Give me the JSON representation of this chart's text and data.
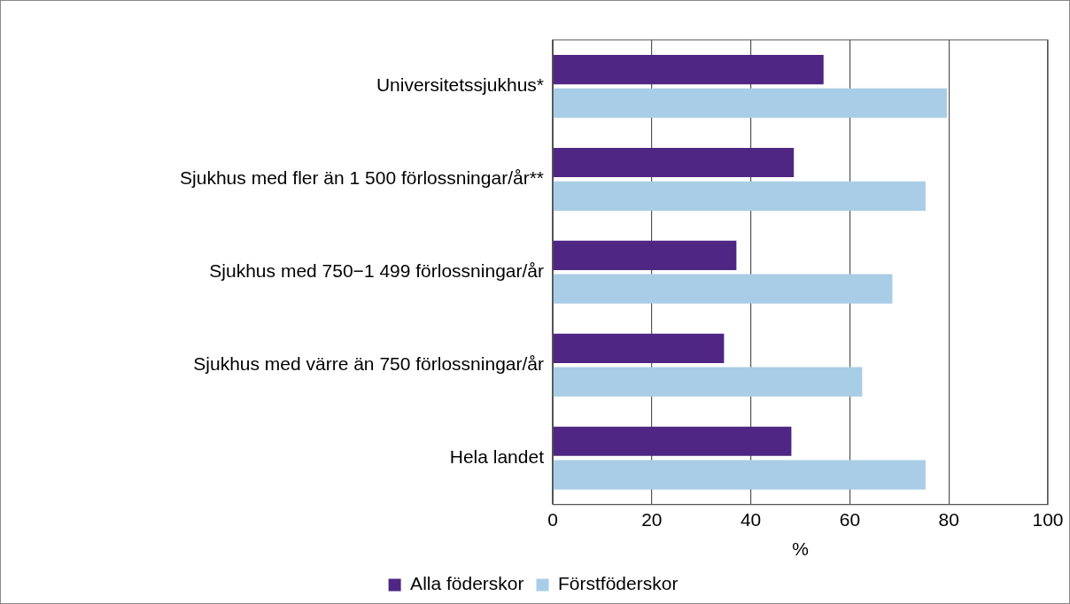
{
  "chart_data": {
    "type": "bar",
    "orientation": "horizontal",
    "categories": [
      "Universitetssjukhus*",
      "Sjukhus med fler än 1 500 förlossningar/år**",
      "Sjukhus med 750−1 499 förlossningar/år",
      "Sjukhus med värre än 750 förlossningar/år",
      "Hela landet"
    ],
    "series": [
      {
        "name": "Alla föderskor",
        "color": "#4f2683",
        "values": [
          54.7,
          48.7,
          37.1,
          34.6,
          48.2
        ]
      },
      {
        "name": "Förstföderskor",
        "color": "#a9cde6",
        "values": [
          79.6,
          75.3,
          68.6,
          62.5,
          75.3
        ]
      }
    ],
    "xlabel": "%",
    "xlim": [
      0,
      100
    ],
    "xticks": [
      0,
      20,
      40,
      60,
      80,
      100
    ],
    "grid": "x",
    "legend": "bottom"
  }
}
